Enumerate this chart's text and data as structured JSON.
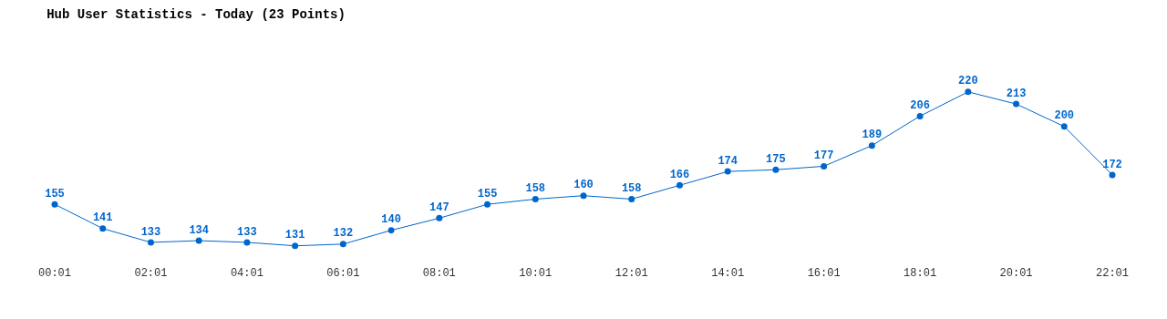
{
  "chart_data": {
    "type": "line",
    "title": "Hub User Statistics - Today (23 Points)",
    "categories": [
      "00:01",
      null,
      "02:01",
      null,
      "04:01",
      null,
      "06:01",
      null,
      "08:01",
      null,
      "10:01",
      null,
      "12:01",
      null,
      "14:01",
      null,
      "16:01",
      null,
      "18:01",
      null,
      "20:01",
      null,
      "22:01"
    ],
    "series": [
      {
        "color": "#0066cc",
        "values": [
          155,
          141,
          133,
          134,
          133,
          131,
          132,
          140,
          147,
          155,
          158,
          160,
          158,
          166,
          174,
          175,
          177,
          189,
          206,
          220,
          213,
          200,
          172
        ]
      }
    ],
    "data_labels": true,
    "marker": "circle",
    "line_style": "solid",
    "tick_labels": "x"
  }
}
